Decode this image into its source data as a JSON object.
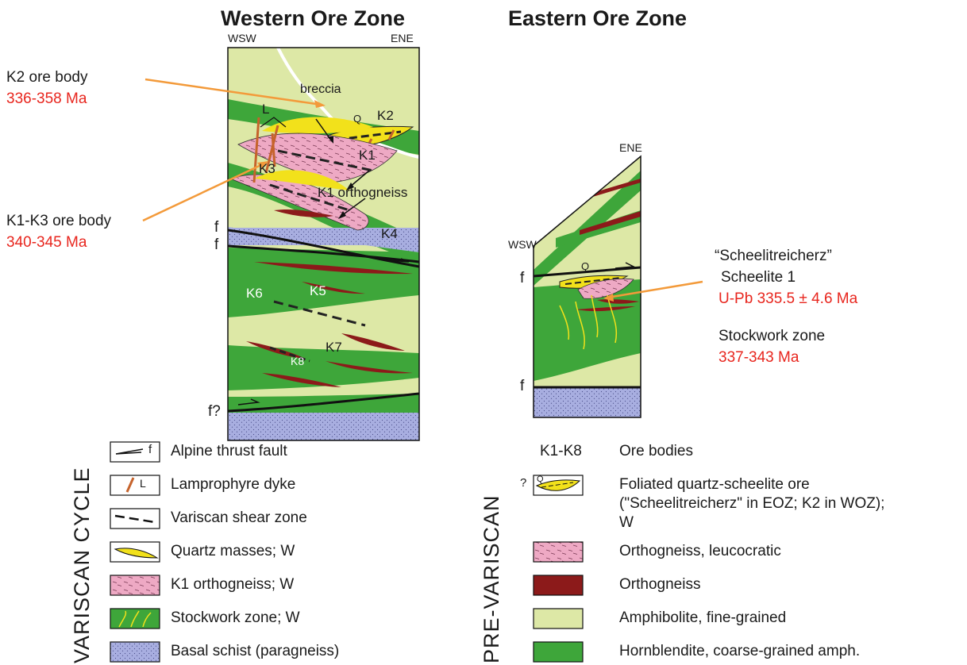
{
  "titles": {
    "western": "Western Ore Zone",
    "eastern": "Eastern Ore Zone"
  },
  "western": {
    "dir_left": "WSW",
    "dir_right": "ENE",
    "labels": {
      "breccia": "breccia",
      "q": "Q",
      "k2": "K2",
      "l": "L",
      "k1": "K1",
      "k3": "K3",
      "k1_orthogneiss": "K1 orthogneiss",
      "k4": "K4",
      "k5": "K5",
      "k6": "K6",
      "k7": "K7",
      "k8": "K8",
      "f1": "f",
      "f2": "f",
      "f3": "f?"
    }
  },
  "eastern": {
    "dir_left": "WSW",
    "dir_right": "ENE",
    "labels": {
      "q": "Q",
      "f1": "f",
      "f2": "f"
    }
  },
  "annotations": {
    "k2_name": "K2 ore body",
    "k2_age": "336-358 Ma",
    "k1k3_name": "K1-K3 ore body",
    "k1k3_age": "340-345 Ma",
    "sch_name": "“Scheelitreicherz”",
    "sch_sub": "Scheelite 1",
    "sch_age": "U-Pb 335.5 ± 4.6 Ma",
    "stock_name": "Stockwork zone",
    "stock_age": "337-343 Ma"
  },
  "legend": {
    "variscan_title": "VARISCAN CYCLE",
    "prevariscan_title": "PRE-VARISCAN",
    "variscan_items": [
      {
        "label": "Alpine thrust fault",
        "key": "f"
      },
      {
        "label": "Lamprophyre dyke",
        "key": "L"
      },
      {
        "label": "Variscan shear zone"
      },
      {
        "label": "Quartz masses; W"
      },
      {
        "label": "K1 orthogneiss; W"
      },
      {
        "label": "Stockwork zone; W"
      },
      {
        "label": "Basal schist (paragneiss)"
      }
    ],
    "pre_items": {
      "ore_key": "K1-K8",
      "ore_label": "Ore bodies",
      "q_mark": "?",
      "q_key": "Q",
      "quartz_line1": "Foliated quartz-scheelite ore",
      "quartz_line2": "(\"Scheelitreicherz\" in EOZ; K2 in WOZ);",
      "quartz_line3": "W",
      "leuco": "Orthogneiss, leucocratic",
      "ortho": "Orthogneiss",
      "amph": "Amphibolite, fine-grained",
      "hbl": "Hornblendite, coarse-grained amph."
    }
  },
  "colors": {
    "amphibolite": "#dde8a6",
    "hornblendite": "#3ea63a",
    "orthogneiss": "#8c1a1a",
    "leuco": "#eea9c4",
    "schist": "#a8aee0",
    "quartz": "#f2e11b",
    "dyke": "#c6632c",
    "arrow": "#f39a3a",
    "age": "#e8261e"
  }
}
